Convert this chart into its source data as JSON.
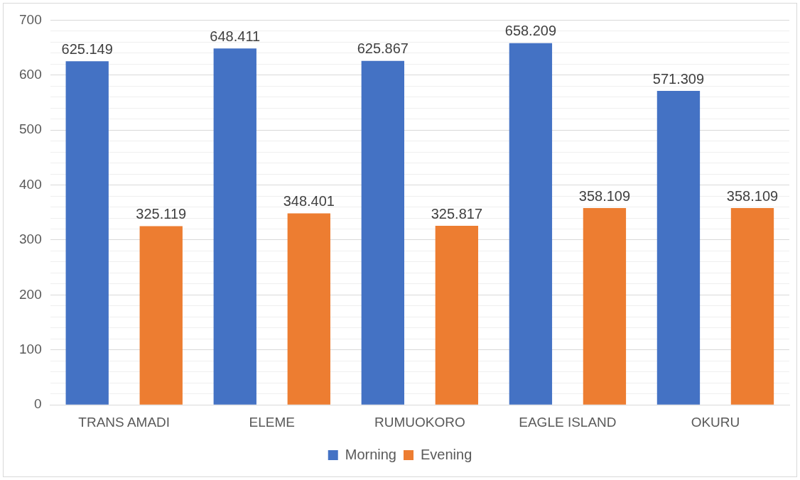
{
  "chart_data": {
    "type": "bar",
    "categories": [
      "TRANS AMADI",
      "ELEME",
      "RUMUOKORO",
      "EAGLE ISLAND",
      "OKURU"
    ],
    "series": [
      {
        "name": "Morning",
        "color": "#4472c4",
        "values": [
          625.149,
          648.411,
          625.867,
          658.209,
          571.309
        ]
      },
      {
        "name": "Evening",
        "color": "#ed7d31",
        "values": [
          325.119,
          348.401,
          325.817,
          358.109,
          358.109
        ]
      }
    ],
    "ylim": [
      0,
      700
    ],
    "yticks": [
      0,
      {
        "value": 20,
        "label": null
      },
      {
        "value": 40,
        "label": null
      },
      {
        "value": 60,
        "label": null
      },
      {
        "value": 80,
        "label": null
      },
      100,
      {
        "value": 120,
        "label": null
      },
      {
        "value": 140,
        "label": null
      },
      {
        "value": 160,
        "label": null
      },
      {
        "value": 180,
        "label": null
      },
      200,
      {
        "value": 220,
        "label": null
      },
      {
        "value": 240,
        "label": null
      },
      {
        "value": 260,
        "label": null
      },
      {
        "value": 280,
        "label": null
      },
      300,
      {
        "value": 320,
        "label": null
      },
      {
        "value": 340,
        "label": null
      },
      {
        "value": 360,
        "label": null
      },
      {
        "value": 380,
        "label": null
      },
      400,
      {
        "value": 420,
        "label": null
      },
      {
        "value": 440,
        "label": null
      },
      {
        "value": 460,
        "label": null
      },
      {
        "value": 480,
        "label": null
      },
      500,
      {
        "value": 520,
        "label": null
      },
      {
        "value": 540,
        "label": null
      },
      {
        "value": 560,
        "label": null
      },
      {
        "value": 580,
        "label": null
      },
      600,
      {
        "value": 620,
        "label": null
      },
      {
        "value": 640,
        "label": null
      },
      {
        "value": 660,
        "label": null
      },
      {
        "value": 680,
        "label": null
      },
      700
    ],
    "grid": "y",
    "legend": "bottom",
    "data_labels": true
  }
}
